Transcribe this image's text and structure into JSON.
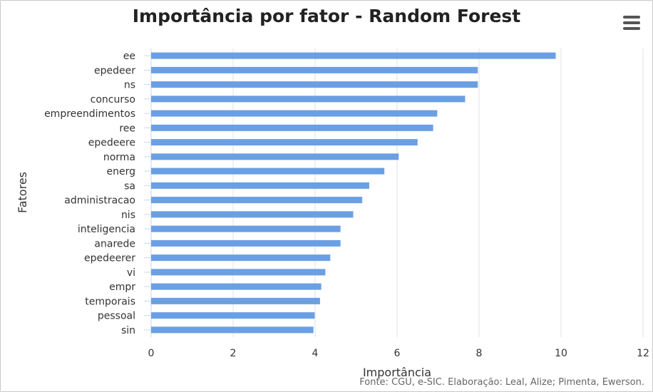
{
  "header": {
    "menu_icon": "hamburger-menu-icon"
  },
  "credits": "Fonte: CGU, e-SIC. Elaboração: Leal, Alize; Pimenta, Ewerson.",
  "colors": {
    "bar": "#6a9fe4",
    "grid": "#e0e0e0",
    "axis": "#ccd6eb"
  },
  "chart_data": {
    "type": "bar",
    "orientation": "horizontal",
    "title": "Importância por fator - Random Forest",
    "xlabel": "Importância",
    "ylabel": "Fatores",
    "xlim": [
      0,
      12
    ],
    "xticks": [
      "0",
      "2",
      "4",
      "6",
      "8",
      "10",
      "12"
    ],
    "grid": true,
    "legend": false,
    "categories": [
      "ee",
      "epedeer",
      "ns",
      "concurso",
      "empreendimentos",
      "ree",
      "epedeere",
      "norma",
      "energ",
      "sa",
      "administracao",
      "nis",
      "inteligencia",
      "anarede",
      "epedeerer",
      "vi",
      "empr",
      "temporais",
      "pessoal",
      "sin"
    ],
    "values": [
      9.87,
      7.97,
      7.97,
      7.66,
      6.98,
      6.88,
      6.5,
      6.04,
      5.69,
      5.32,
      5.15,
      4.93,
      4.62,
      4.62,
      4.37,
      4.25,
      4.15,
      4.12,
      3.99,
      3.96
    ]
  }
}
